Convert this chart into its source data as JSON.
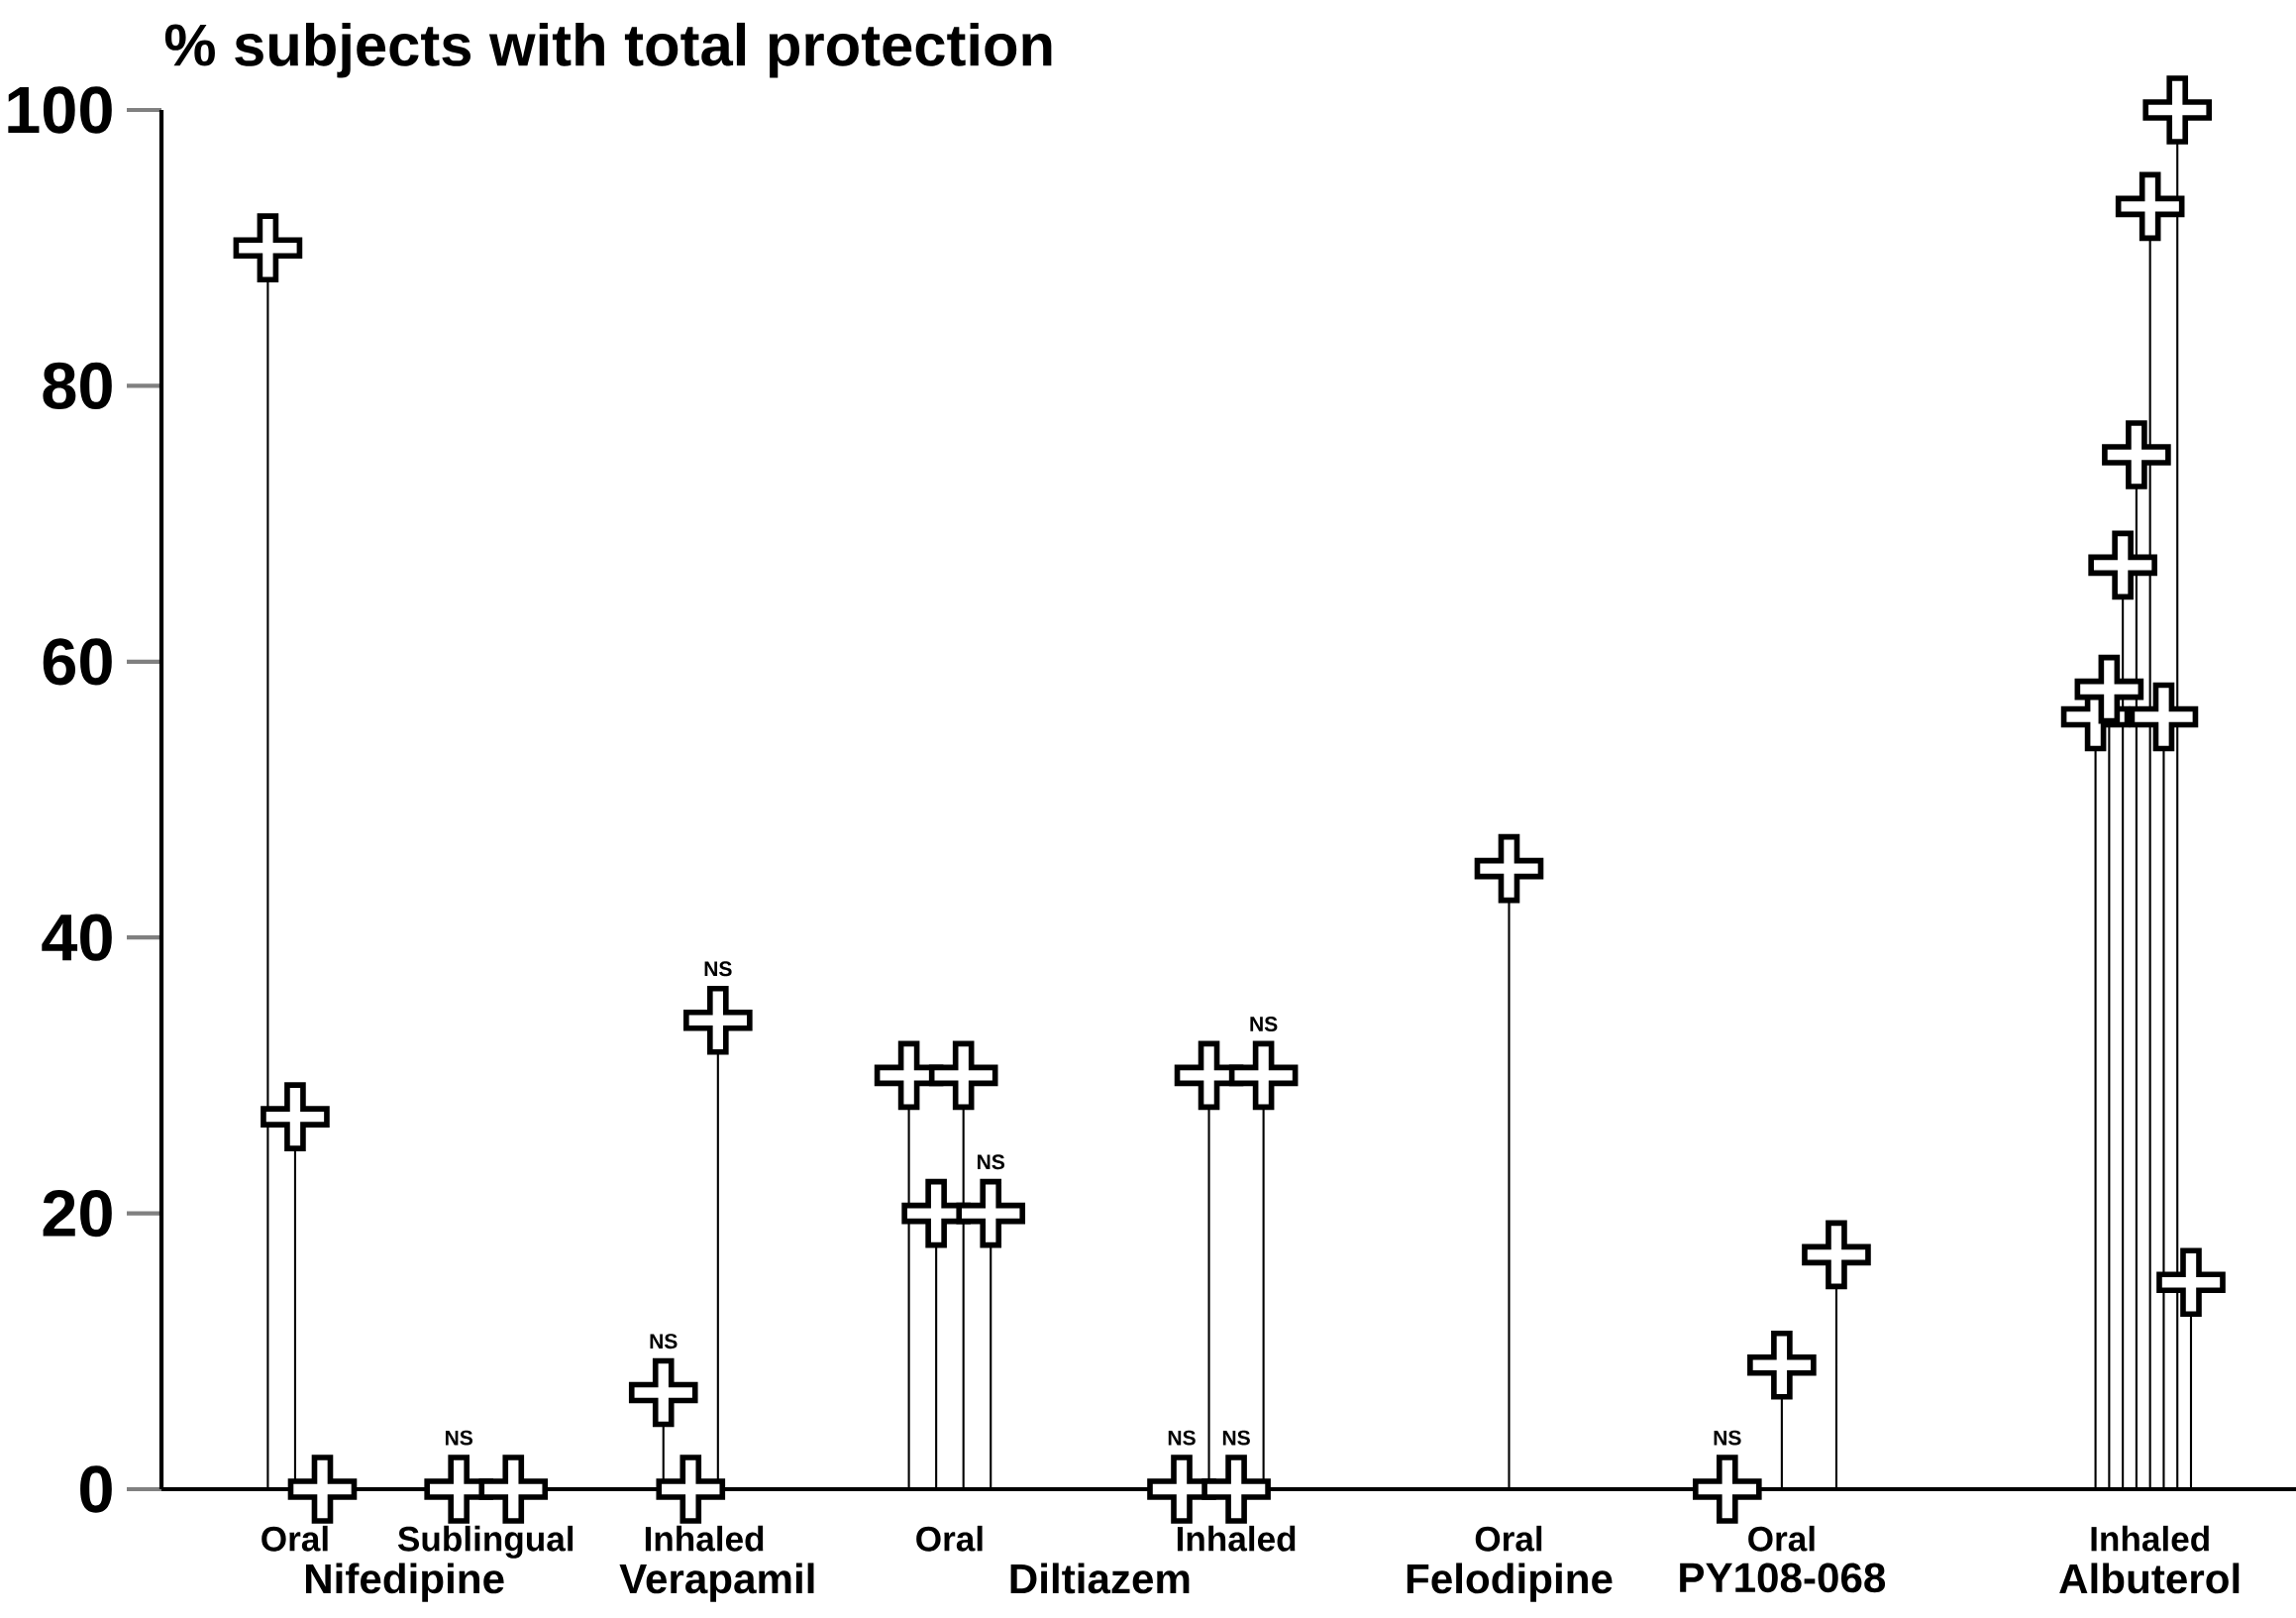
{
  "chart_data": {
    "type": "lollipop",
    "ylabel": "% subjects with total protection",
    "categories": [
      null,
      null,
      "Oral",
      null,
      null,
      null,
      null,
      null,
      null,
      null,
      null,
      null,
      null,
      null,
      null,
      null,
      "Sublingual",
      null,
      null,
      null,
      null,
      null,
      null,
      null,
      null,
      null,
      null,
      null,
      null,
      null,
      null,
      null,
      "Inhaled",
      null,
      null,
      null,
      null,
      null,
      null,
      null,
      null,
      null,
      null,
      null,
      null,
      null,
      null,
      null,
      null,
      null,
      "Oral",
      null,
      null,
      null,
      null,
      null,
      null,
      null,
      null,
      null,
      null,
      null,
      null,
      null,
      null,
      null,
      null,
      null,
      null,
      null,
      null,
      "Inhaled",
      null,
      null,
      null,
      null,
      null,
      null,
      null,
      null,
      null,
      null,
      null,
      null,
      null,
      null,
      null,
      null,
      null,
      null,
      null,
      "Oral",
      null,
      null,
      null,
      null,
      null,
      null,
      null,
      null,
      null,
      null,
      null,
      null,
      null,
      null,
      null,
      null,
      null,
      null,
      null,
      "Oral",
      null,
      null,
      null,
      null,
      null,
      null,
      null,
      null,
      null,
      null,
      null,
      null,
      null,
      null,
      null,
      null,
      null,
      null,
      null,
      null,
      null,
      null,
      null,
      null,
      null,
      null,
      "Inhaled",
      null,
      null,
      null
    ],
    "values": [
      90,
      null,
      27,
      null,
      0,
      null,
      null,
      null,
      null,
      null,
      null,
      null,
      null,
      null,
      0,
      null,
      null,
      null,
      0,
      null,
      null,
      null,
      null,
      null,
      null,
      null,
      null,
      null,
      null,
      7,
      null,
      0,
      null,
      34,
      null,
      null,
      null,
      null,
      null,
      null,
      null,
      null,
      null,
      null,
      null,
      null,
      null,
      30,
      null,
      20,
      null,
      30,
      null,
      20,
      null,
      null,
      null,
      null,
      null,
      null,
      null,
      null,
      null,
      null,
      null,
      null,
      null,
      0,
      null,
      30,
      null,
      0,
      null,
      30,
      null,
      null,
      null,
      null,
      null,
      null,
      null,
      null,
      null,
      null,
      null,
      null,
      null,
      null,
      null,
      null,
      null,
      45,
      null,
      null,
      null,
      null,
      null,
      null,
      null,
      null,
      null,
      null,
      null,
      null,
      null,
      null,
      null,
      0,
      null,
      null,
      null,
      9,
      null,
      null,
      null,
      17,
      null,
      null,
      null,
      null,
      null,
      null,
      null,
      null,
      null,
      null,
      null,
      null,
      null,
      null,
      null,
      null,
      null,
      null,
      56,
      58,
      67,
      75,
      93,
      56,
      100,
      15
    ],
    "value_labels": [
      null,
      null,
      null,
      null,
      null,
      null,
      null,
      null,
      null,
      null,
      null,
      null,
      null,
      null,
      "NS",
      null,
      null,
      null,
      null,
      null,
      null,
      null,
      null,
      null,
      null,
      null,
      null,
      null,
      null,
      "NS",
      null,
      null,
      null,
      "NS",
      null,
      null,
      null,
      null,
      null,
      null,
      null,
      null,
      null,
      null,
      null,
      null,
      null,
      null,
      null,
      null,
      null,
      null,
      null,
      "NS",
      null,
      null,
      null,
      null,
      null,
      null,
      null,
      null,
      null,
      null,
      null,
      null,
      null,
      "NS",
      null,
      null,
      null,
      "NS",
      null,
      "NS",
      null,
      null,
      null,
      null,
      null,
      null,
      null,
      null,
      null,
      null,
      null,
      null,
      null,
      null,
      null,
      null,
      null,
      null,
      null,
      null,
      null,
      null,
      null,
      null,
      null,
      null,
      null,
      null,
      null,
      null,
      null,
      null,
      null,
      "NS",
      null,
      null,
      null,
      null,
      null,
      null,
      null,
      null,
      null,
      null,
      null,
      null,
      null,
      null,
      null,
      null,
      null,
      null,
      null,
      null,
      null,
      null,
      null,
      null,
      null,
      null,
      null,
      null,
      null,
      null,
      null,
      null,
      null,
      null
    ],
    "annotations": [
      "Nifedipine",
      "Verapamil",
      "Diltiazem",
      "Felodipine",
      "PY108-068",
      "Albuterol"
    ],
    "color": "#000000",
    "marker": "cross",
    "ylim": [
      0,
      100
    ],
    "yticks": [
      0,
      20,
      40,
      60,
      80,
      100
    ],
    "grid": false
  }
}
